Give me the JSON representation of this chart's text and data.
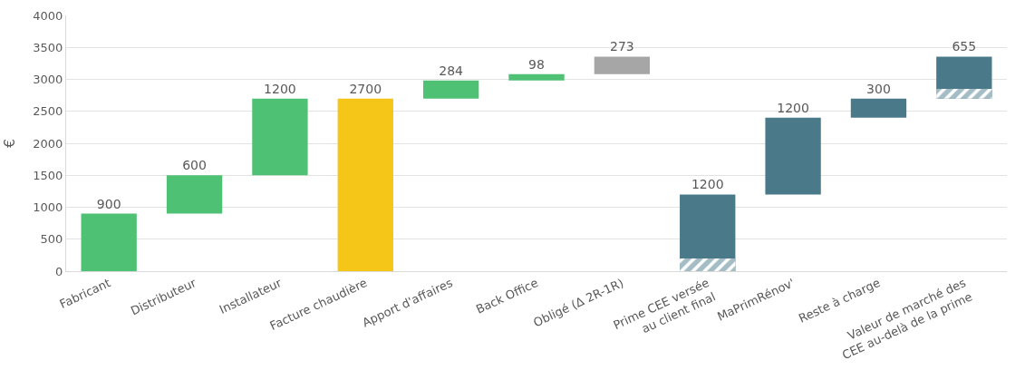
{
  "chart_data": {
    "type": "bar",
    "ylabel": "€",
    "categories": [
      "Fabricant",
      "Distributeur",
      "Installateur",
      "Facture chaudière",
      "Apport d'affaires",
      "Back Office",
      "Obligé (Δ 2R-1R)",
      "Prime CEE versée\nau client final",
      "MaPrimRénov'",
      "Reste à charge",
      "Valeur de marché des\nCEE au-delà de la prime"
    ],
    "series": [
      {
        "colors": [
          "#4fc174",
          "#4fc174",
          "#4fc174",
          "#f5c518",
          "#4fc174",
          "#4fc174",
          "#a6a6a6",
          "#4a7a8a",
          "#4a7a8a",
          "#4a7a8a",
          "#4a7a8a"
        ],
        "base": [
          0,
          900,
          1500,
          0,
          2700,
          2984,
          3082,
          0,
          1200,
          2400,
          2700
        ],
        "values": [
          900,
          600,
          1200,
          2700,
          284,
          98,
          273,
          1200,
          1200,
          300,
          655
        ],
        "value_labels": [
          "900",
          "600",
          "1200",
          "2700",
          "284",
          "98",
          "273",
          "1200",
          "1200",
          "300",
          "655"
        ]
      },
      {
        "type": "bar",
        "color": "#4a7a8a",
        "base": [
          null,
          null,
          null,
          null,
          null,
          null,
          null,
          0,
          null,
          null,
          2700
        ],
        "values": [
          null,
          null,
          null,
          null,
          null,
          null,
          null,
          200,
          null,
          null,
          150
        ]
      }
    ],
    "ylim": [
      0,
      4000
    ],
    "yticks": [
      0,
      500,
      1000,
      1500,
      2000,
      2500,
      3000,
      3500,
      4000
    ],
    "grid": "y"
  }
}
